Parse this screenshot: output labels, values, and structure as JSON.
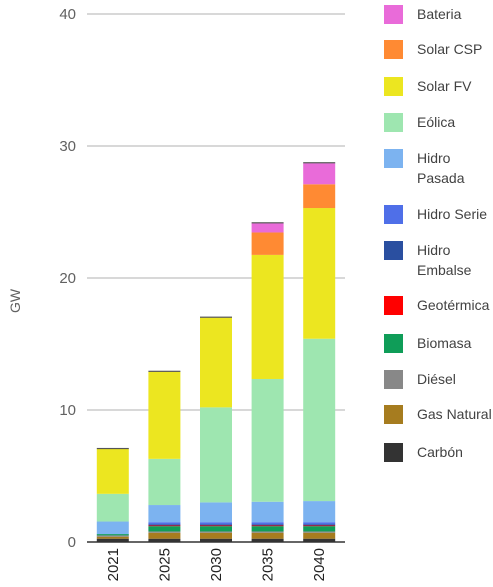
{
  "chart_data": {
    "type": "bar",
    "stacked": true,
    "title": "",
    "xlabel": "",
    "ylabel": "GW",
    "ylim": [
      0,
      40
    ],
    "yticks": [
      0,
      10,
      20,
      30,
      40
    ],
    "grid": true,
    "legend_position": "right",
    "categories": [
      "2021",
      "2025",
      "2030",
      "2035",
      "2040"
    ],
    "series": [
      {
        "name": "Carbón",
        "color": "#333333",
        "values": [
          0.25,
          0.25,
          0.25,
          0.25,
          0.25
        ]
      },
      {
        "name": "Gas Natural",
        "color": "#a67c1f",
        "values": [
          0.15,
          0.45,
          0.45,
          0.45,
          0.45
        ]
      },
      {
        "name": "Diésel",
        "color": "#888888",
        "values": [
          0.1,
          0.1,
          0.1,
          0.1,
          0.1
        ]
      },
      {
        "name": "Biomasa",
        "color": "#0f9d58",
        "values": [
          0.1,
          0.4,
          0.4,
          0.4,
          0.4
        ]
      },
      {
        "name": "Geotérmica",
        "color": "#ff0000",
        "values": [
          0.0,
          0.05,
          0.05,
          0.05,
          0.05
        ]
      },
      {
        "name": "Hidro Embalse",
        "color": "#2a4fa0",
        "values": [
          0.0,
          0.1,
          0.1,
          0.1,
          0.1
        ]
      },
      {
        "name": "Hidro Serie",
        "color": "#4f6fe8",
        "values": [
          0.0,
          0.15,
          0.15,
          0.15,
          0.15
        ]
      },
      {
        "name": "Hidro Pasada",
        "color": "#7cb3f0",
        "values": [
          0.95,
          1.3,
          1.5,
          1.55,
          1.6
        ]
      },
      {
        "name": "Eólica",
        "color": "#9ee6b0",
        "values": [
          2.1,
          3.5,
          7.2,
          9.3,
          12.3
        ]
      },
      {
        "name": "Solar FV",
        "color": "#ece620",
        "values": [
          3.4,
          6.6,
          6.8,
          9.4,
          9.9
        ]
      },
      {
        "name": "Solar CSP",
        "color": "#ff8a33",
        "values": [
          0.0,
          0.0,
          0.0,
          1.7,
          1.8
        ]
      },
      {
        "name": "Bateria",
        "color": "#e96bd9",
        "values": [
          0.0,
          0.0,
          0.0,
          0.7,
          1.6
        ]
      }
    ],
    "legend_order": [
      "Bateria",
      "Solar CSP",
      "Solar FV",
      "Eólica",
      "Hidro Pasada",
      "Hidro Serie",
      "Hidro Embalse",
      "Geotérmica",
      "Biomasa",
      "Diésel",
      "Gas Natural",
      "Carbón"
    ],
    "colors": {
      "grid": "#cccccc",
      "axis": "#333333",
      "tick_text": "#616161",
      "legend_text": "#424242"
    }
  }
}
